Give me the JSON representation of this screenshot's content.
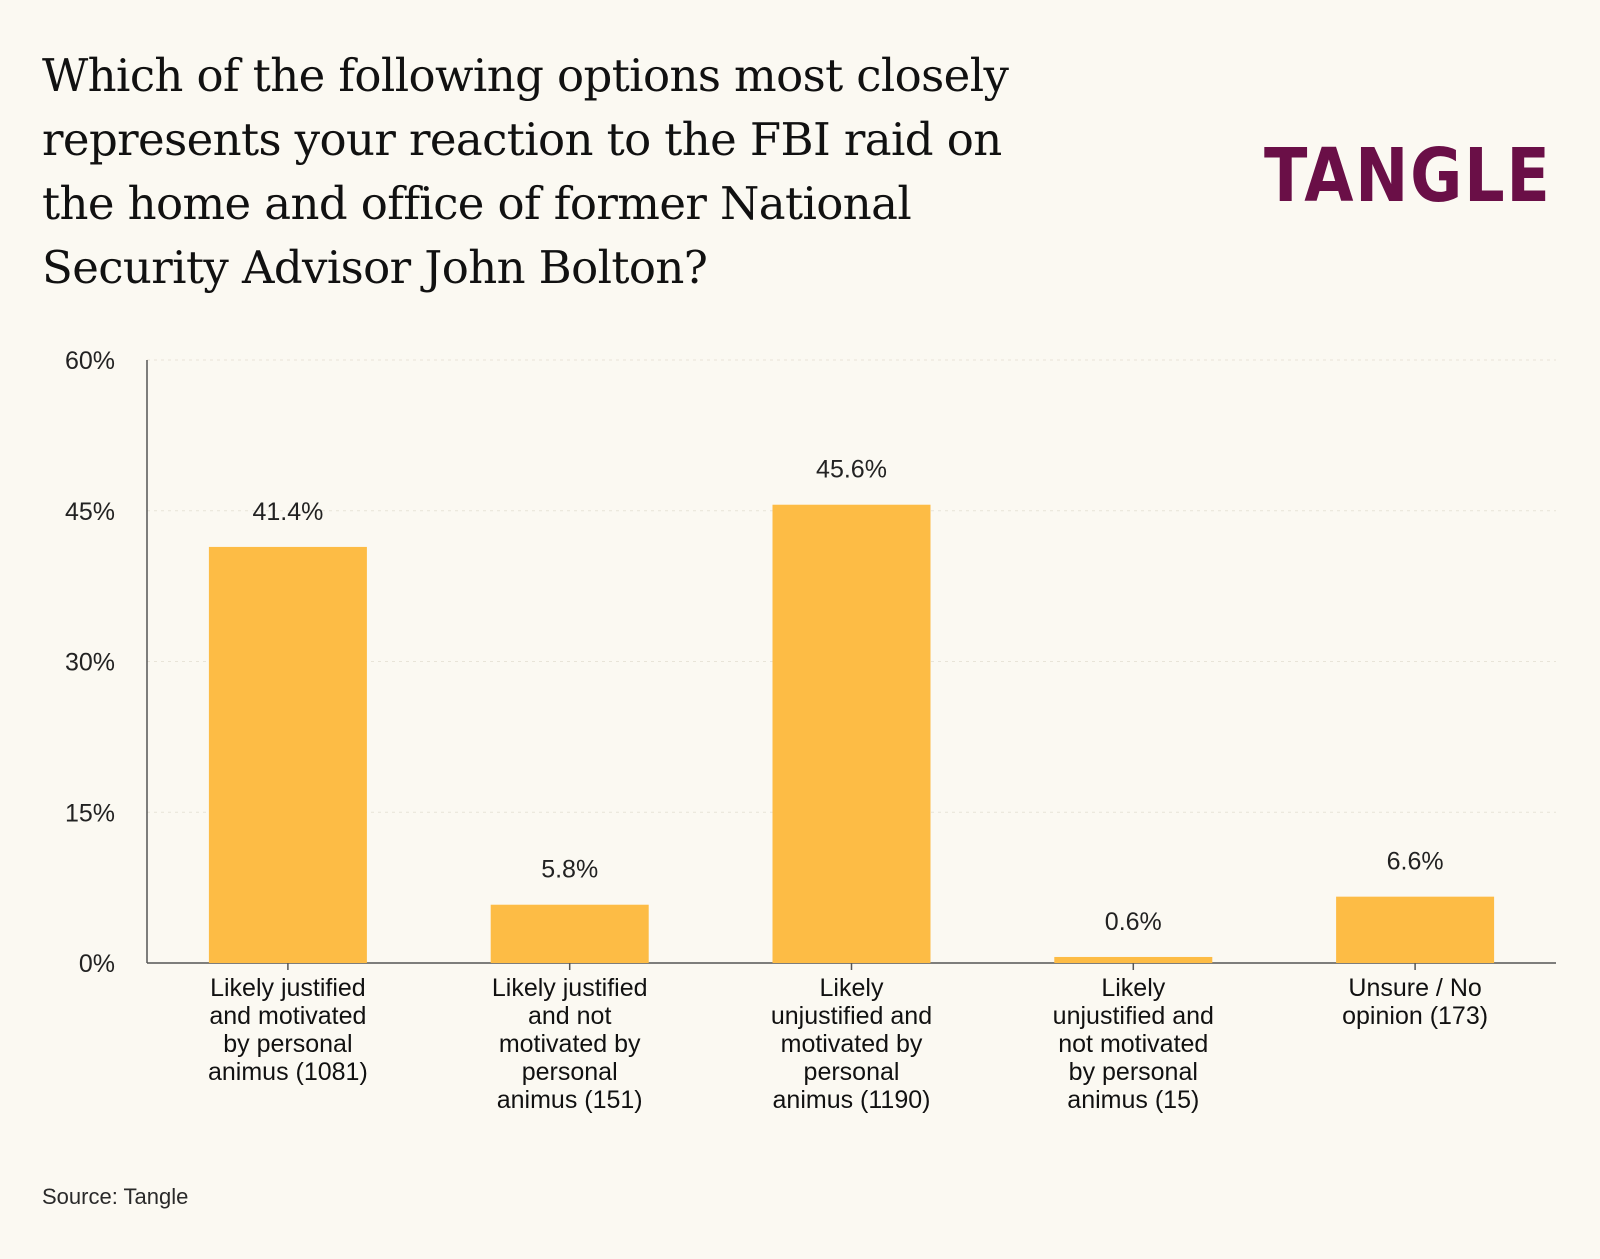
{
  "header": {
    "title": "Which of the following options most closely represents your reaction to the FBI raid on the home and office of former National Security Advisor John Bolton?",
    "logo_text": "TANGLE"
  },
  "footer": {
    "source": "Source: Tangle"
  },
  "colors": {
    "background": "#FBF9F2",
    "bar": "#FDBC45",
    "brand": "#6A0F47",
    "axis": "#555555",
    "grid": "#E8E4D8"
  },
  "chart_data": {
    "type": "bar",
    "title": "Which of the following options most closely represents your reaction to the FBI raid on the home and office of former National Security Advisor John Bolton?",
    "xlabel": "",
    "ylabel": "",
    "ylim": [
      0,
      60
    ],
    "yticks": [
      0,
      15,
      30,
      45,
      60
    ],
    "ytick_labels": [
      "0%",
      "15%",
      "30%",
      "45%",
      "60%"
    ],
    "grid": true,
    "categories": [
      [
        "Likely justified",
        "and motivated",
        "by personal",
        "animus (1081)"
      ],
      [
        "Likely justified",
        "and not",
        "motivated by",
        "personal",
        "animus (151)"
      ],
      [
        "Likely",
        "unjustified and",
        "motivated by",
        "personal",
        "animus (1190)"
      ],
      [
        "Likely",
        "unjustified and",
        "not motivated",
        "by personal",
        "animus (15)"
      ],
      [
        "Unsure / No",
        "opinion (173)"
      ]
    ],
    "values": [
      41.4,
      5.8,
      45.6,
      0.6,
      6.6
    ],
    "value_labels": [
      "41.4%",
      "5.8%",
      "45.6%",
      "0.6%",
      "6.6%"
    ],
    "source": "Source: Tangle"
  }
}
